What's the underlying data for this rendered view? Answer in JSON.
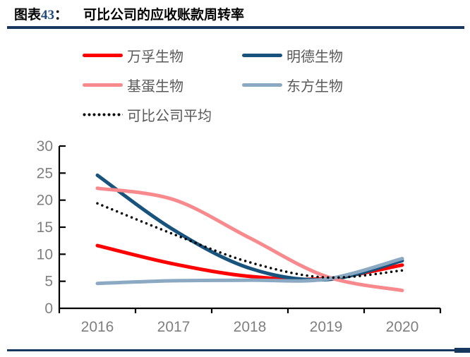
{
  "page": {
    "figure_prefix": "图表",
    "figure_number": "43",
    "figure_colon": "：",
    "title": "可比公司的应收账款周转率"
  },
  "colors": {
    "accent_rule": "#17375E",
    "axis_line": "#000000",
    "axis_text": "#7F7F7F",
    "legend_text": "#595959",
    "figure_number_text": "#1F497D"
  },
  "chart_data": {
    "type": "line",
    "title": "可比公司的应收账款周转率",
    "categories": [
      "2016",
      "2017",
      "2018",
      "2019",
      "2020"
    ],
    "series": [
      {
        "name": "万孚生物",
        "color": "#FE0000",
        "style": "solid",
        "values": [
          11.6,
          8.2,
          5.9,
          5.5,
          8.0
        ]
      },
      {
        "name": "明德生物",
        "color": "#17537C",
        "style": "solid",
        "values": [
          24.6,
          14.5,
          7.4,
          5.3,
          8.8
        ]
      },
      {
        "name": "基蛋生物",
        "color": "#F8898C",
        "style": "solid",
        "values": [
          22.2,
          20.1,
          13.0,
          5.9,
          3.3
        ]
      },
      {
        "name": "东方生物",
        "color": "#8BA9C2",
        "style": "solid",
        "values": [
          4.6,
          5.1,
          5.2,
          5.4,
          9.2
        ]
      },
      {
        "name": "可比公司平均",
        "color": "#000000",
        "style": "dotted",
        "values": [
          19.4,
          13.7,
          8.5,
          5.7,
          7.0
        ]
      }
    ],
    "xlabel": "",
    "ylabel": "",
    "ylim": [
      0,
      30
    ],
    "yticks": [
      0,
      5,
      10,
      15,
      20,
      25,
      30
    ],
    "grid": false,
    "legend_position": "top-left",
    "smooth_lines": true
  }
}
